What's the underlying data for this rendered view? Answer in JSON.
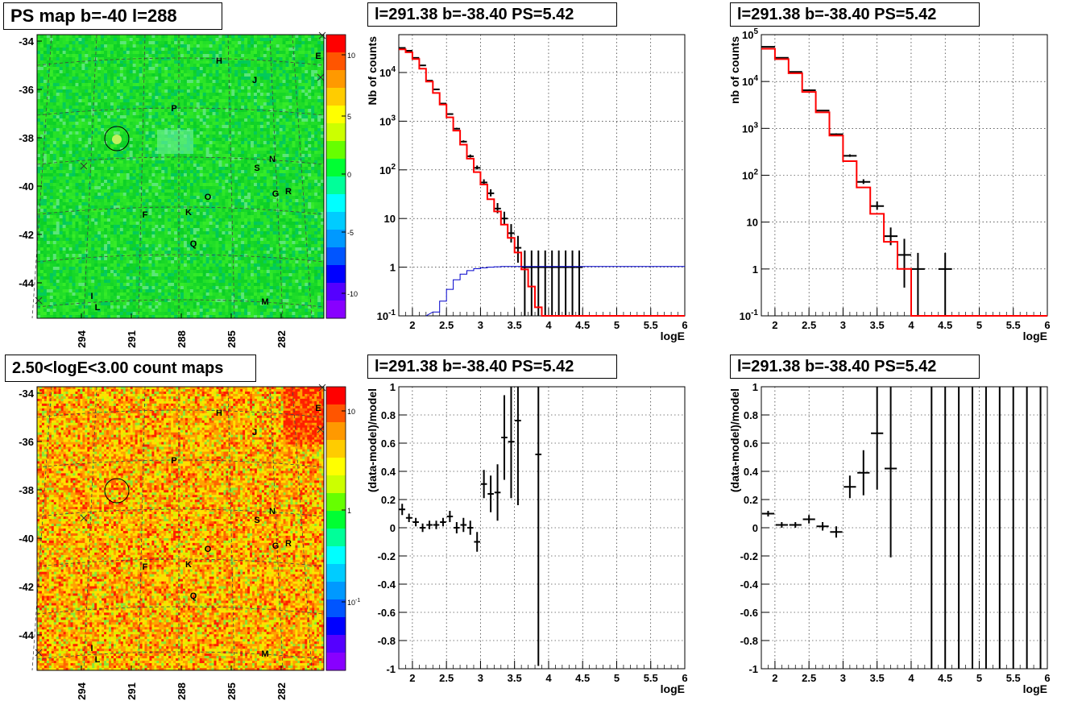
{
  "panels": {
    "map_top": {
      "title": "PS map b=-40 l=288"
    },
    "map_bottom": {
      "title": "2.50<logE<3.00 count maps"
    },
    "spec1": {
      "title": "l=291.38 b=-38.40 PS=5.42"
    },
    "spec2": {
      "title": "l=291.38 b=-38.40 PS=5.42"
    },
    "res1": {
      "title": "l=291.38 b=-38.40 PS=5.42"
    },
    "res2": {
      "title": "l=291.38 b=-38.40 PS=5.42"
    }
  },
  "colors": {
    "data": "#000000",
    "model": "#ff0000",
    "ps_curve": "#0000cc",
    "grid": "#000000"
  },
  "chart_data": [
    {
      "id": "map_top",
      "type": "heatmap",
      "title": "PS map b=-40 l=288",
      "xticks": [
        "294",
        "291",
        "288",
        "285",
        "282"
      ],
      "yticks": [
        "-34",
        "-36",
        "-38",
        "-40",
        "-42",
        "-44"
      ],
      "colorbar_ticks": [
        "10",
        "5",
        "0",
        "-5",
        "-10"
      ],
      "labels": [
        "H",
        "E",
        "J",
        "P",
        "S",
        "N",
        "O",
        "G",
        "R",
        "F",
        "K",
        "Q",
        "I",
        "L",
        "M"
      ]
    },
    {
      "id": "map_bottom",
      "type": "heatmap",
      "title": "2.50<logE<3.00 count maps",
      "xticks": [
        "294",
        "291",
        "288",
        "285",
        "282"
      ],
      "yticks": [
        "-34",
        "-36",
        "-38",
        "-40",
        "-42",
        "-44"
      ],
      "colorbar_ticks": [
        "10",
        "1",
        "10-1"
      ],
      "labels": [
        "H",
        "E",
        "J",
        "P",
        "S",
        "N",
        "O",
        "G",
        "R",
        "F",
        "K",
        "Q",
        "I",
        "L",
        "M"
      ]
    },
    {
      "id": "spec1",
      "type": "line",
      "title": "l=291.38 b=-38.40 PS=5.42",
      "xlabel": "logE",
      "ylabel": "Nb of counts",
      "xlim": [
        1.8,
        6
      ],
      "ylim": [
        0.1,
        60000
      ],
      "yscale": "log",
      "xticks": [
        "2",
        "2.5",
        "3",
        "3.5",
        "4",
        "4.5",
        "5",
        "5.5",
        "6"
      ],
      "yticks": [
        "10-1",
        "1",
        "10",
        "102",
        "103",
        "104"
      ],
      "model": {
        "edges": [
          1.8,
          1.9,
          2.0,
          2.1,
          2.2,
          2.3,
          2.4,
          2.5,
          2.6,
          2.7,
          2.8,
          2.9,
          3.0,
          3.1,
          3.2,
          3.3,
          3.4,
          3.5,
          3.6,
          3.7,
          3.8,
          3.9,
          4.0,
          6.0
        ],
        "values": [
          30000,
          26000,
          19000,
          12000,
          6500,
          3800,
          2200,
          1200,
          640,
          330,
          170,
          90,
          50,
          25,
          14,
          7.5,
          4,
          2,
          0.9,
          0.4,
          0.15,
          0.1,
          0.1
        ]
      },
      "data": [
        [
          1.85,
          32000
        ],
        [
          1.95,
          28000
        ],
        [
          2.05,
          20000
        ],
        [
          2.15,
          14000
        ],
        [
          2.25,
          6800
        ],
        [
          2.35,
          4500
        ],
        [
          2.45,
          2300
        ],
        [
          2.55,
          1400
        ],
        [
          2.65,
          700
        ],
        [
          2.75,
          380
        ],
        [
          2.85,
          190
        ],
        [
          2.95,
          110
        ],
        [
          3.05,
          55
        ],
        [
          3.15,
          33
        ],
        [
          3.25,
          16
        ],
        [
          3.35,
          10
        ],
        [
          3.45,
          5
        ],
        [
          3.55,
          2.5
        ],
        [
          3.65,
          1
        ],
        [
          3.75,
          1
        ],
        [
          3.85,
          1
        ],
        [
          3.95,
          1
        ],
        [
          4.05,
          1
        ],
        [
          4.15,
          1
        ],
        [
          4.25,
          1
        ],
        [
          4.35,
          1
        ],
        [
          4.45,
          1
        ]
      ],
      "ps_curve": {
        "edges": [
          2.3,
          2.4,
          2.5,
          2.6,
          2.7,
          2.8,
          2.9,
          3.0,
          3.1,
          3.2,
          3.3,
          6.0
        ],
        "values": [
          0.12,
          0.2,
          0.35,
          0.55,
          0.72,
          0.85,
          0.93,
          0.97,
          1.0,
          1.02,
          1.03
        ]
      }
    },
    {
      "id": "spec2",
      "type": "line",
      "title": "l=291.38 b=-38.40 PS=5.42",
      "xlabel": "logE",
      "ylabel": "nb of counts",
      "xlim": [
        1.8,
        6
      ],
      "ylim": [
        0.1,
        100000
      ],
      "yscale": "log",
      "xticks": [
        "2",
        "2.5",
        "3",
        "3.5",
        "4",
        "4.5",
        "5",
        "5.5",
        "6"
      ],
      "yticks": [
        "10-1",
        "1",
        "10",
        "102",
        "103",
        "104",
        "105"
      ],
      "model": {
        "edges": [
          1.8,
          2.0,
          2.2,
          2.4,
          2.6,
          2.8,
          3.0,
          3.2,
          3.4,
          3.6,
          3.8,
          4.0,
          4.2,
          6.0
        ],
        "values": [
          50000,
          30000,
          15000,
          6000,
          2200,
          700,
          200,
          55,
          15,
          3.8,
          1.0,
          0.1,
          0.1
        ]
      },
      "data": [
        [
          1.9,
          55000
        ],
        [
          2.1,
          32000
        ],
        [
          2.3,
          16000
        ],
        [
          2.5,
          6500
        ],
        [
          2.7,
          2400
        ],
        [
          2.9,
          750
        ],
        [
          3.1,
          260
        ],
        [
          3.3,
          72
        ],
        [
          3.5,
          22
        ],
        [
          3.7,
          5
        ],
        [
          3.9,
          2
        ],
        [
          4.1,
          1
        ],
        [
          4.5,
          1
        ]
      ]
    },
    {
      "id": "res1",
      "type": "scatter",
      "title": "l=291.38 b=-38.40 PS=5.42",
      "xlabel": "logE",
      "ylabel": "(data-model)/model",
      "xlim": [
        1.8,
        6
      ],
      "ylim": [
        -1,
        1
      ],
      "xticks": [
        "2",
        "2.5",
        "3",
        "3.5",
        "4",
        "4.5",
        "5",
        "5.5",
        "6"
      ],
      "yticks": [
        "-1",
        "-0.8",
        "-0.6",
        "-0.4",
        "-0.2",
        "0",
        "0.2",
        "0.4",
        "0.6",
        "0.8",
        "1"
      ],
      "data": [
        [
          1.85,
          0.13,
          0.04
        ],
        [
          1.95,
          0.07,
          0.03
        ],
        [
          2.05,
          0.04,
          0.03
        ],
        [
          2.15,
          0.0,
          0.03
        ],
        [
          2.25,
          0.02,
          0.03
        ],
        [
          2.35,
          0.02,
          0.03
        ],
        [
          2.45,
          0.04,
          0.03
        ],
        [
          2.55,
          0.08,
          0.04
        ],
        [
          2.65,
          0.0,
          0.04
        ],
        [
          2.75,
          0.02,
          0.05
        ],
        [
          2.85,
          0.0,
          0.05
        ],
        [
          2.95,
          -0.1,
          0.07
        ],
        [
          3.05,
          0.31,
          0.1
        ],
        [
          3.15,
          0.24,
          0.13
        ],
        [
          3.25,
          0.25,
          0.2
        ],
        [
          3.35,
          0.64,
          0.3
        ],
        [
          3.45,
          0.61,
          0.4
        ],
        [
          3.55,
          0.76,
          0.6
        ],
        [
          3.85,
          0.52,
          1.5
        ]
      ]
    },
    {
      "id": "res2",
      "type": "scatter",
      "title": "l=291.38 b=-38.40 PS=5.42",
      "xlabel": "logE",
      "ylabel": "(data-model)/model",
      "xlim": [
        1.8,
        6
      ],
      "ylim": [
        -1,
        1
      ],
      "xticks": [
        "2",
        "2.5",
        "3",
        "3.5",
        "4",
        "4.5",
        "5",
        "5.5",
        "6"
      ],
      "yticks": [
        "-1",
        "-0.8",
        "-0.6",
        "-0.4",
        "-0.2",
        "0",
        "0.2",
        "0.4",
        "0.6",
        "0.8",
        "1"
      ],
      "data": [
        [
          1.9,
          0.1,
          0.02
        ],
        [
          2.1,
          0.02,
          0.02
        ],
        [
          2.3,
          0.02,
          0.02
        ],
        [
          2.5,
          0.06,
          0.03
        ],
        [
          2.7,
          0.01,
          0.03
        ],
        [
          2.9,
          -0.03,
          0.04
        ],
        [
          3.1,
          0.29,
          0.08
        ],
        [
          3.3,
          0.39,
          0.16
        ],
        [
          3.5,
          0.67,
          0.4
        ],
        [
          3.7,
          0.42,
          0.63
        ],
        [
          4.3,
          0,
          2
        ],
        [
          4.5,
          0,
          2
        ],
        [
          4.7,
          0,
          2
        ],
        [
          4.9,
          0,
          2
        ],
        [
          5.1,
          0,
          2
        ],
        [
          5.3,
          0,
          2
        ],
        [
          5.5,
          0,
          2
        ],
        [
          5.7,
          0,
          2
        ],
        [
          5.9,
          0,
          2
        ]
      ]
    }
  ]
}
